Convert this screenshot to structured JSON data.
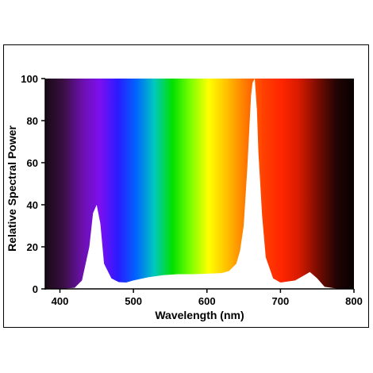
{
  "chart_data": {
    "type": "area",
    "title": "",
    "xlabel": "Wavelength (nm)",
    "ylabel": "Relative Spectral Power",
    "xlim": [
      380,
      800
    ],
    "ylim": [
      0,
      100
    ],
    "xticks": [
      400,
      500,
      600,
      700,
      800
    ],
    "yticks": [
      0,
      20,
      40,
      60,
      80,
      100
    ],
    "grid": false,
    "legend": "none",
    "fill": "visible-spectrum-gradient",
    "series": [
      {
        "x": [
          380,
          400,
          420,
          430,
          440,
          445,
          450,
          455,
          460,
          470,
          480,
          490,
          500,
          520,
          540,
          560,
          580,
          600,
          620,
          630,
          640,
          645,
          650,
          655,
          660,
          662,
          665,
          668,
          670,
          675,
          680,
          690,
          700,
          720,
          730,
          740,
          750,
          760,
          780,
          800
        ],
        "y": [
          0,
          0,
          0.5,
          4,
          20,
          36,
          40,
          31,
          12,
          5,
          3.2,
          3,
          4,
          5.5,
          6.5,
          7,
          7,
          7.2,
          7.5,
          8.5,
          12,
          18,
          30,
          58,
          92,
          98,
          100,
          85,
          65,
          35,
          15,
          5,
          3,
          4,
          6,
          8,
          5,
          1,
          0,
          0
        ]
      }
    ],
    "colors": {
      "spectrum": [
        "#180a14",
        "#3a0f44",
        "#6a10a8",
        "#7d0ff0",
        "#2a1aff",
        "#0064ff",
        "#00c8c0",
        "#00e000",
        "#7cff00",
        "#ffff00",
        "#ffc000",
        "#ff7a00",
        "#ff4000",
        "#ff2600",
        "#d61a00",
        "#7a0c00",
        "#240404",
        "#080000"
      ],
      "curve_fill": "#ffffff"
    }
  }
}
